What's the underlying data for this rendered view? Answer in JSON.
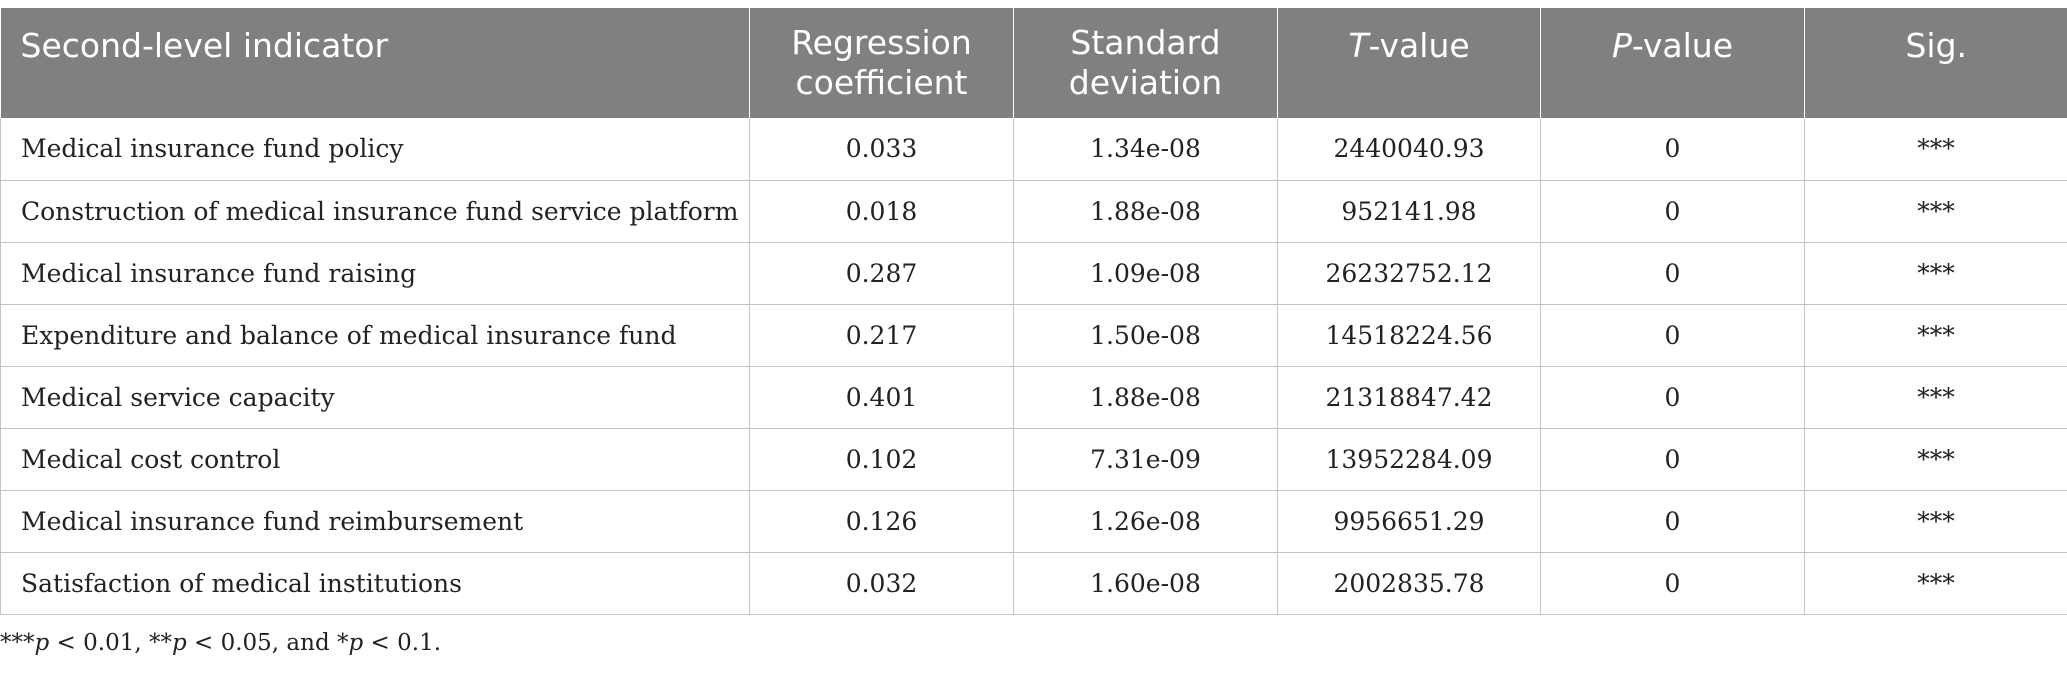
{
  "table": {
    "headers": {
      "indicator": "Second-level indicator",
      "regression_line1": "Regression",
      "regression_line2": "coefficient",
      "stddev_line1": "Standard",
      "stddev_line2": "deviation",
      "t_italic": "T",
      "t_rest": "-value",
      "p_italic": "P",
      "p_rest": "-value",
      "sig": "Sig."
    },
    "rows": [
      {
        "indicator": "Medical insurance fund policy",
        "coef": "0.033",
        "sd": "1.34e-08",
        "t": "2440040.93",
        "p": "0",
        "sig": "***"
      },
      {
        "indicator": "Construction of medical insurance fund service platform",
        "coef": "0.018",
        "sd": "1.88e-08",
        "t": "952141.98",
        "p": "0",
        "sig": "***"
      },
      {
        "indicator": "Medical insurance fund raising",
        "coef": "0.287",
        "sd": "1.09e-08",
        "t": "26232752.12",
        "p": "0",
        "sig": "***"
      },
      {
        "indicator": "Expenditure and balance of medical insurance fund",
        "coef": "0.217",
        "sd": "1.50e-08",
        "t": "14518224.56",
        "p": "0",
        "sig": "***"
      },
      {
        "indicator": "Medical service capacity",
        "coef": "0.401",
        "sd": "1.88e-08",
        "t": "21318847.42",
        "p": "0",
        "sig": "***"
      },
      {
        "indicator": "Medical cost control",
        "coef": "0.102",
        "sd": "7.31e-09",
        "t": "13952284.09",
        "p": "0",
        "sig": "***"
      },
      {
        "indicator": "Medical insurance fund reimbursement",
        "coef": "0.126",
        "sd": "1.26e-08",
        "t": "9956651.29",
        "p": "0",
        "sig": "***"
      },
      {
        "indicator": "Satisfaction of medical institutions",
        "coef": "0.032",
        "sd": "1.60e-08",
        "t": "2002835.78",
        "p": "0",
        "sig": "***"
      }
    ]
  },
  "footnote": {
    "m1": "***",
    "p1": "p",
    "t1": " < 0.01, ",
    "m2": "**",
    "p2": "p",
    "t2": " < 0.05, and ",
    "m3": "*",
    "p3": "p",
    "t3": " < 0.1."
  }
}
